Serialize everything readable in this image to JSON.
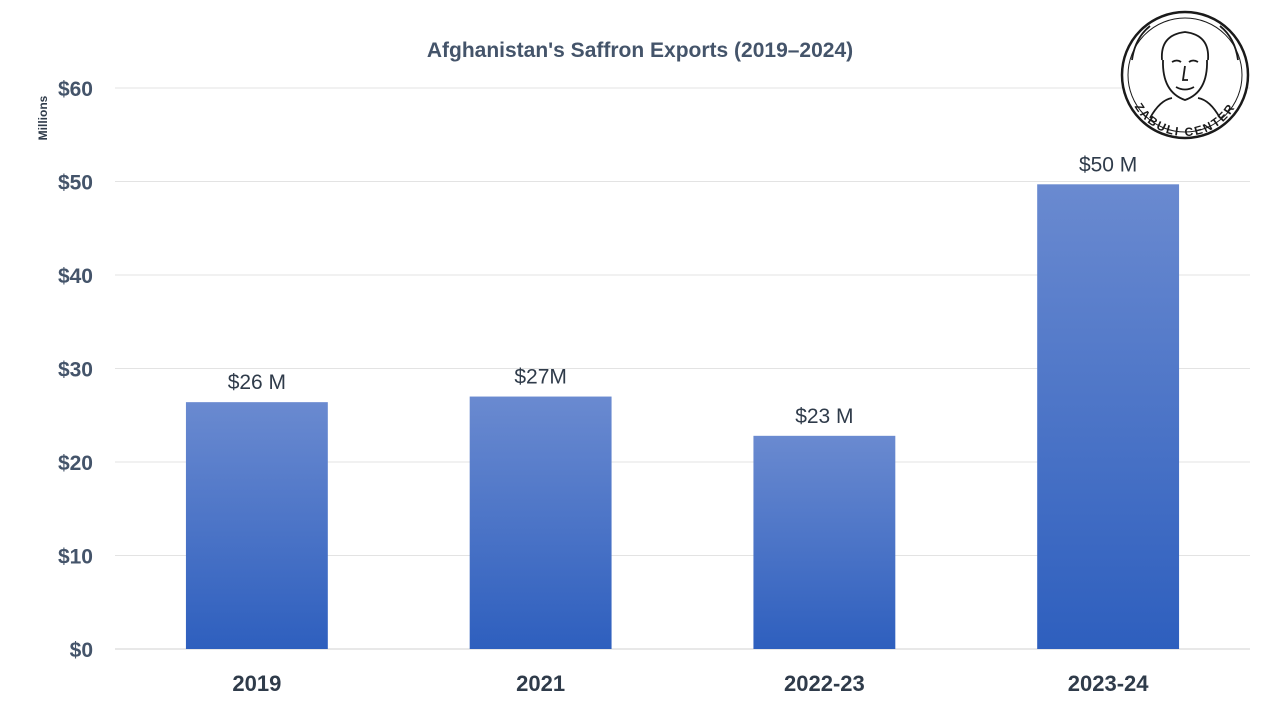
{
  "chart_data": {
    "type": "bar",
    "title": "Afghanistan's Saffron Exports (2019–2024)",
    "xlabel": "",
    "ylabel": "Millions",
    "categories": [
      "2019",
      "2021",
      "2022-23",
      "2023-24"
    ],
    "values": [
      26.4,
      27.0,
      22.8,
      49.7
    ],
    "data_labels": [
      "$26 M",
      "$27M",
      "$23 M",
      "$50 M"
    ],
    "ylim": [
      0,
      60
    ],
    "yticks": [
      0,
      10,
      20,
      30,
      40,
      50,
      60
    ],
    "ytick_labels": [
      "$0",
      "$10",
      "$20",
      "$30",
      "$40",
      "$50",
      "$60"
    ],
    "grid": true,
    "legend": "none",
    "bar_color_top": "#6a8ad0",
    "bar_color_bottom": "#2e5fbe",
    "grid_color": "#e3e3e3",
    "axis_color": "#d0d0d0"
  },
  "logo": {
    "text": "ZABULI CENTER",
    "icon": "portrait-seal"
  }
}
